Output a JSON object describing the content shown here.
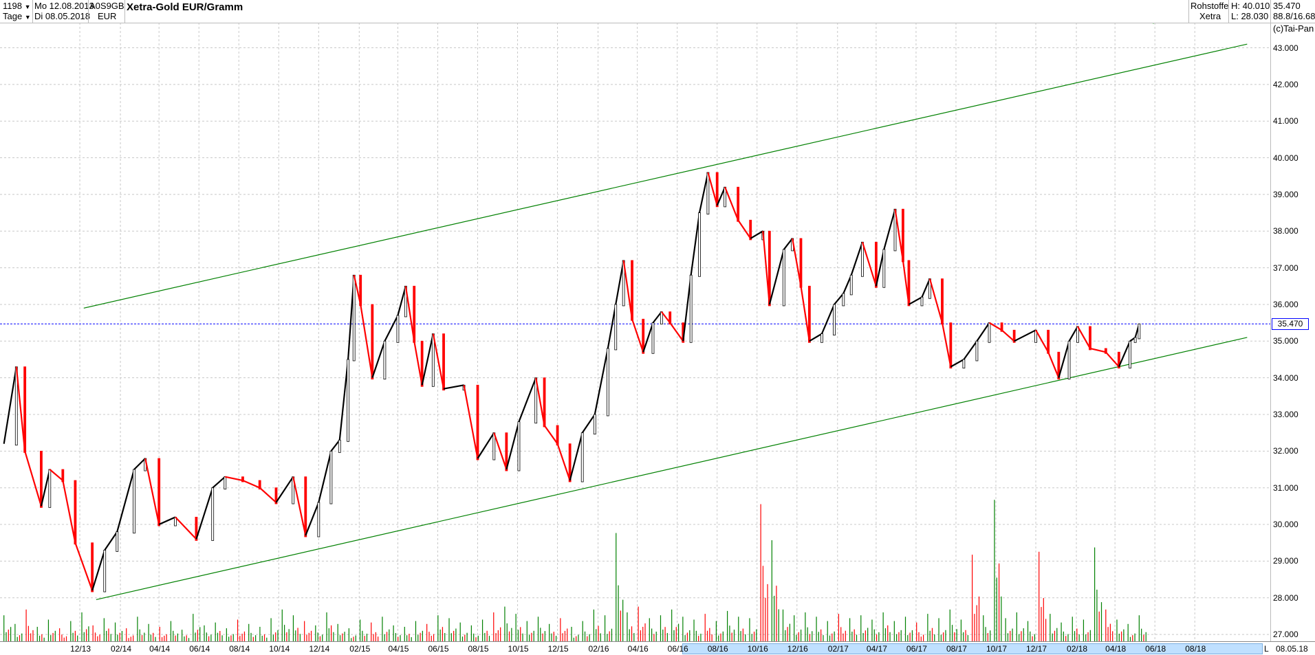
{
  "header": {
    "count": "1198",
    "period": "Tage",
    "start_date": "Mo 12.08.2013",
    "end_date": "Di 08.05.2018",
    "wkn": "A0S9GB",
    "currency": "EUR",
    "title": "Xetra-Gold EUR/Gramm",
    "category": "Rohstoffe",
    "exchange": "Xetra",
    "high": "H: 40.010",
    "low": "L: 28.030",
    "last": "35.470",
    "extra": "88.8/16.68",
    "copyright": "(c)Tai-Pan"
  },
  "footer": {
    "l_label": "L",
    "date": "08.05.18"
  },
  "colors": {
    "up": "#000000",
    "down": "#ff0000",
    "trendline": "#008000",
    "last_line": "#0000ff",
    "vol_up": "#008000",
    "vol_down": "#ff0000",
    "range": "#bfe0ff"
  },
  "chart_data": {
    "type": "line",
    "title": "Xetra-Gold EUR/Gramm",
    "ylim": [
      27,
      43.5
    ],
    "xlim": [
      "2013-08-01",
      "2018-10-31"
    ],
    "grid": true,
    "y_ticks": [
      "43.000",
      "42.000",
      "41.000",
      "40.000",
      "39.000",
      "38.000",
      "37.000",
      "36.000",
      "35.000",
      "34.000",
      "33.000",
      "32.000",
      "31.000",
      "30.000",
      "29.000",
      "28.000",
      "27.000"
    ],
    "x_ticks": [
      {
        "label": "12/13",
        "date": "2013-12-01"
      },
      {
        "label": "02/14",
        "date": "2014-02-01"
      },
      {
        "label": "04/14",
        "date": "2014-04-01"
      },
      {
        "label": "06/14",
        "date": "2014-06-01"
      },
      {
        "label": "08/14",
        "date": "2014-08-01"
      },
      {
        "label": "10/14",
        "date": "2014-10-01"
      },
      {
        "label": "12/14",
        "date": "2014-12-01"
      },
      {
        "label": "02/15",
        "date": "2015-02-01"
      },
      {
        "label": "04/15",
        "date": "2015-04-01"
      },
      {
        "label": "06/15",
        "date": "2015-06-01"
      },
      {
        "label": "08/15",
        "date": "2015-08-01"
      },
      {
        "label": "10/15",
        "date": "2015-10-01"
      },
      {
        "label": "12/15",
        "date": "2015-12-01"
      },
      {
        "label": "02/16",
        "date": "2016-02-01"
      },
      {
        "label": "04/16",
        "date": "2016-04-01"
      },
      {
        "label": "06/16",
        "date": "2016-06-01"
      },
      {
        "label": "08/16",
        "date": "2016-08-01"
      },
      {
        "label": "10/16",
        "date": "2016-10-01"
      },
      {
        "label": "12/16",
        "date": "2016-12-01"
      },
      {
        "label": "02/17",
        "date": "2017-02-01"
      },
      {
        "label": "04/17",
        "date": "2017-04-01"
      },
      {
        "label": "06/17",
        "date": "2017-06-01"
      },
      {
        "label": "08/17",
        "date": "2017-08-01"
      },
      {
        "label": "10/17",
        "date": "2017-10-01"
      },
      {
        "label": "12/17",
        "date": "2017-12-01"
      },
      {
        "label": "02/18",
        "date": "2018-02-01"
      },
      {
        "label": "04/18",
        "date": "2018-04-01"
      },
      {
        "label": "06/18",
        "date": "2018-06-01"
      },
      {
        "label": "08/18",
        "date": "2018-08-01"
      }
    ],
    "last_price": 35.47,
    "series": [
      {
        "points": [
          [
            "2013-08-07",
            32.2
          ],
          [
            "2013-08-26",
            34.3
          ],
          [
            "2013-09-08",
            32.0
          ],
          [
            "2013-10-03",
            30.5
          ],
          [
            "2013-10-16",
            31.5
          ],
          [
            "2013-11-05",
            31.2
          ],
          [
            "2013-11-24",
            29.5
          ],
          [
            "2013-12-20",
            28.2
          ],
          [
            "2014-01-08",
            29.3
          ],
          [
            "2014-01-27",
            29.8
          ],
          [
            "2014-02-22",
            31.5
          ],
          [
            "2014-03-11",
            31.8
          ],
          [
            "2014-04-01",
            30.0
          ],
          [
            "2014-04-26",
            30.2
          ],
          [
            "2014-05-28",
            29.6
          ],
          [
            "2014-06-22",
            31.0
          ],
          [
            "2014-07-11",
            31.3
          ],
          [
            "2014-08-07",
            31.2
          ],
          [
            "2014-09-02",
            31.0
          ],
          [
            "2014-09-27",
            30.6
          ],
          [
            "2014-10-23",
            31.3
          ],
          [
            "2014-11-11",
            29.7
          ],
          [
            "2014-12-01",
            30.6
          ],
          [
            "2014-12-20",
            32.0
          ],
          [
            "2015-01-02",
            32.3
          ],
          [
            "2015-01-15",
            34.5
          ],
          [
            "2015-01-24",
            36.8
          ],
          [
            "2015-02-03",
            36.0
          ],
          [
            "2015-02-21",
            34.0
          ],
          [
            "2015-03-12",
            35.0
          ],
          [
            "2015-04-01",
            35.7
          ],
          [
            "2015-04-13",
            36.5
          ],
          [
            "2015-04-26",
            35.0
          ],
          [
            "2015-05-08",
            33.8
          ],
          [
            "2015-05-25",
            35.2
          ],
          [
            "2015-06-10",
            33.7
          ],
          [
            "2015-07-11",
            33.8
          ],
          [
            "2015-08-01",
            31.8
          ],
          [
            "2015-08-26",
            32.5
          ],
          [
            "2015-09-14",
            31.5
          ],
          [
            "2015-10-03",
            32.8
          ],
          [
            "2015-10-29",
            34.0
          ],
          [
            "2015-11-11",
            32.7
          ],
          [
            "2015-12-01",
            32.2
          ],
          [
            "2015-12-20",
            31.2
          ],
          [
            "2016-01-08",
            32.5
          ],
          [
            "2016-01-27",
            33.0
          ],
          [
            "2016-02-16",
            34.8
          ],
          [
            "2016-02-28",
            36.0
          ],
          [
            "2016-03-11",
            37.2
          ],
          [
            "2016-03-24",
            35.6
          ],
          [
            "2016-04-10",
            34.7
          ],
          [
            "2016-04-25",
            35.5
          ],
          [
            "2016-05-08",
            35.8
          ],
          [
            "2016-05-21",
            35.5
          ],
          [
            "2016-06-10",
            35.0
          ],
          [
            "2016-06-22",
            36.8
          ],
          [
            "2016-07-05",
            38.5
          ],
          [
            "2016-07-18",
            39.6
          ],
          [
            "2016-08-01",
            38.7
          ],
          [
            "2016-08-13",
            39.2
          ],
          [
            "2016-09-02",
            38.3
          ],
          [
            "2016-09-21",
            37.8
          ],
          [
            "2016-10-10",
            38.0
          ],
          [
            "2016-10-20",
            36.0
          ],
          [
            "2016-11-11",
            37.5
          ],
          [
            "2016-11-24",
            37.8
          ],
          [
            "2016-12-07",
            36.5
          ],
          [
            "2016-12-20",
            35.0
          ],
          [
            "2017-01-08",
            35.2
          ],
          [
            "2017-01-27",
            36.0
          ],
          [
            "2017-02-10",
            36.3
          ],
          [
            "2017-02-22",
            36.8
          ],
          [
            "2017-03-11",
            37.7
          ],
          [
            "2017-04-01",
            36.5
          ],
          [
            "2017-04-13",
            37.5
          ],
          [
            "2017-04-30",
            38.6
          ],
          [
            "2017-05-12",
            37.2
          ],
          [
            "2017-05-21",
            36.0
          ],
          [
            "2017-06-10",
            36.2
          ],
          [
            "2017-06-22",
            36.7
          ],
          [
            "2017-07-11",
            35.5
          ],
          [
            "2017-07-24",
            34.3
          ],
          [
            "2017-08-13",
            34.5
          ],
          [
            "2017-09-02",
            35.0
          ],
          [
            "2017-09-21",
            35.5
          ],
          [
            "2017-10-10",
            35.3
          ],
          [
            "2017-10-29",
            35.0
          ],
          [
            "2017-12-01",
            35.3
          ],
          [
            "2017-12-20",
            34.7
          ],
          [
            "2018-01-05",
            34.0
          ],
          [
            "2018-01-21",
            35.0
          ],
          [
            "2018-02-03",
            35.4
          ],
          [
            "2018-02-22",
            34.8
          ],
          [
            "2018-03-18",
            34.7
          ],
          [
            "2018-04-07",
            34.3
          ],
          [
            "2018-04-24",
            35.0
          ],
          [
            "2018-05-02",
            35.1
          ],
          [
            "2018-05-08",
            35.47
          ]
        ]
      }
    ],
    "trendlines": [
      {
        "from": [
          "2013-12-07",
          35.9
        ],
        "to": [
          "2018-10-20",
          43.1
        ]
      },
      {
        "from": [
          "2013-12-26",
          27.95
        ],
        "to": [
          "2018-10-20",
          35.1
        ]
      }
    ],
    "volume_relative": [
      18,
      12,
      22,
      10,
      15,
      9,
      14,
      20,
      11,
      16,
      13,
      9,
      17,
      12,
      10,
      14,
      8,
      19,
      11,
      13,
      9,
      15,
      12,
      10,
      16,
      22,
      18,
      14,
      11,
      20,
      12,
      9,
      15,
      13,
      17,
      11,
      10,
      14,
      12,
      18,
      16,
      13,
      11,
      15,
      20,
      24,
      19,
      14,
      17,
      12,
      16,
      10,
      14,
      22,
      18,
      75,
      20,
      24,
      16,
      18,
      22,
      17,
      15,
      19,
      14,
      21,
      17,
      16,
      95,
      70,
      22,
      18,
      20,
      17,
      14,
      19,
      16,
      18,
      15,
      20,
      14,
      17,
      13,
      19,
      16,
      22,
      15,
      60,
      18,
      98,
      16,
      20,
      14,
      62,
      19,
      13,
      17,
      15,
      65,
      22,
      15,
      12,
      18
    ],
    "volume_down": [
      2,
      5,
      8,
      11,
      14,
      21,
      27,
      33,
      38,
      44,
      50,
      57,
      63,
      68,
      75,
      82,
      87,
      93,
      99
    ]
  }
}
